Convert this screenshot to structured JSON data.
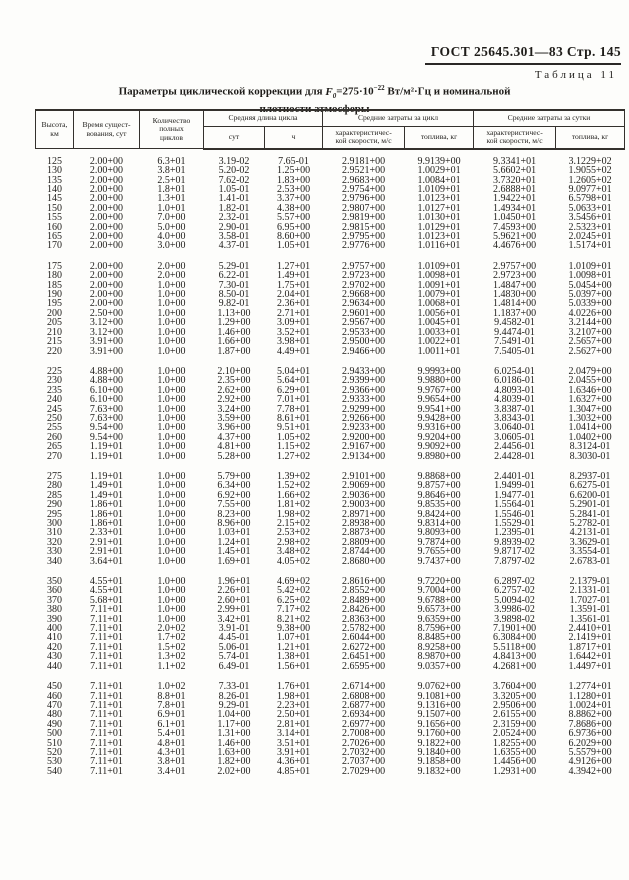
{
  "page_header": {
    "standard": "ГОСТ 25645.301—83",
    "page": "Стр. 145"
  },
  "table_label": "Таблица 11",
  "title": {
    "prefix": "Параметры циклической коррекции для",
    "f_var": "F",
    "f_sub": "0",
    "eq": "=275·10",
    "exp": "−22",
    "units": "Вт/м²·Гц",
    "suffix": "и номинальной",
    "line2": "плотности атмосферы"
  },
  "table": {
    "headers": {
      "height": "Высота, км",
      "lifetime": "Время сущест-\nвования, сут",
      "cycles": "Количество\nполных\nциклов",
      "cycle_length_group": "Средняя длина цикла",
      "cycle_length_days": "сут",
      "cycle_length_hours": "ч",
      "per_cycle_group": "Средние затраты за цикл",
      "per_cycle_velocity": "характеристичес-\nкой скорости, м/с",
      "per_cycle_fuel": "топлива, кг",
      "per_day_group": "Средние затраты за сутки",
      "per_day_velocity": "характеристичес-\nкой скорости, м/с",
      "per_day_fuel": "топлива, кг"
    },
    "groups": [
      {
        "rows": [
          [
            "125",
            "2.00+00",
            "6.3+01",
            "3.19-02",
            "7.65-01",
            "2.9181+00",
            "9.9139+00",
            "9.3341+01",
            "3.1229+02"
          ],
          [
            "130",
            "2.00+00",
            "3.8+01",
            "5.20-02",
            "1.25+00",
            "2.9521+00",
            "1.0029+01",
            "5.6602+01",
            "1.9055+02"
          ],
          [
            "135",
            "2.00+00",
            "2.5+01",
            "7.62-02",
            "1.83+00",
            "2.9683+00",
            "1.0084+01",
            "3.7320+01",
            "1.2605+02"
          ],
          [
            "140",
            "2.00+00",
            "1.8+01",
            "1.05-01",
            "2.53+00",
            "2.9754+00",
            "1.0109+01",
            "2.6888+01",
            "9.0977+01"
          ],
          [
            "145",
            "2.00+00",
            "1.3+01",
            "1.41-01",
            "3.37+00",
            "2.9796+00",
            "1.0123+01",
            "1.9422+01",
            "6.5798+01"
          ],
          [
            "150",
            "2.00+00",
            "1.0+01",
            "1.82-01",
            "4.38+00",
            "2.9807+00",
            "1.0127+01",
            "1.4934+01",
            "5.0633+01"
          ],
          [
            "155",
            "2.00+00",
            "7.0+00",
            "2.32-01",
            "5.57+00",
            "2.9819+00",
            "1.0130+01",
            "1.0450+01",
            "3.5456+01"
          ],
          [
            "160",
            "2.00+00",
            "5.0+00",
            "2.90-01",
            "6.95+00",
            "2.9815+00",
            "1.0129+01",
            "7.4593+00",
            "2.5323+01"
          ],
          [
            "165",
            "2.00+00",
            "4.0+00",
            "3.58-01",
            "8.60+00",
            "2.9795+00",
            "1.0123+01",
            "5.9621+00",
            "2.0245+01"
          ],
          [
            "170",
            "2.00+00",
            "3.0+00",
            "4.37-01",
            "1.05+01",
            "2.9776+00",
            "1.0116+01",
            "4.4676+00",
            "1.5174+01"
          ]
        ]
      },
      {
        "rows": [
          [
            "175",
            "2.00+00",
            "2.0+00",
            "5.29-01",
            "1.27+01",
            "2.9757+00",
            "1.0109+01",
            "2.9757+00",
            "1.0109+01"
          ],
          [
            "180",
            "2.00+00",
            "2.0+00",
            "6.22-01",
            "1.49+01",
            "2.9723+00",
            "1.0098+01",
            "2.9723+00",
            "1.0098+01"
          ],
          [
            "185",
            "2.00+00",
            "1.0+00",
            "7.30-01",
            "1.75+01",
            "2.9702+00",
            "1.0091+01",
            "1.4847+00",
            "5.0454+00"
          ],
          [
            "190",
            "2.00+00",
            "1.0+00",
            "8.50-01",
            "2.04+01",
            "2.9668+00",
            "1.0079+01",
            "1.4830+00",
            "5.0397+00"
          ],
          [
            "195",
            "2.00+00",
            "1.0+00",
            "9.82-01",
            "2.36+01",
            "2.9634+00",
            "1.0068+01",
            "1.4814+00",
            "5.0339+00"
          ],
          [
            "200",
            "2.50+00",
            "1.0+00",
            "1.13+00",
            "2.71+01",
            "2.9601+00",
            "1.0056+01",
            "1.1837+00",
            "4.0226+00"
          ],
          [
            "205",
            "3.12+00",
            "1.0+00",
            "1.29+00",
            "3.09+01",
            "2.9567+00",
            "1.0045+01",
            "9.4582-01",
            "3.2144+00"
          ],
          [
            "210",
            "3.12+00",
            "1.0+00",
            "1.46+00",
            "3.52+01",
            "2.9533+00",
            "1.0033+01",
            "9.4474-01",
            "3.2107+00"
          ],
          [
            "215",
            "3.91+00",
            "1.0+00",
            "1.66+00",
            "3.98+01",
            "2.9500+00",
            "1.0022+01",
            "7.5491-01",
            "2.5657+00"
          ],
          [
            "220",
            "3.91+00",
            "1.0+00",
            "1.87+00",
            "4.49+01",
            "2.9466+00",
            "1.0011+01",
            "7.5405-01",
            "2.5627+00"
          ]
        ]
      },
      {
        "rows": [
          [
            "225",
            "4.88+00",
            "1.0+00",
            "2.10+00",
            "5.04+01",
            "2.9433+00",
            "9.9993+00",
            "6.0254-01",
            "2.0479+00"
          ],
          [
            "230",
            "4.88+00",
            "1.0+00",
            "2.35+00",
            "5.64+01",
            "2.9399+00",
            "9.9880+00",
            "6.0186-01",
            "2.0455+00"
          ],
          [
            "235",
            "6.10+00",
            "1.0+00",
            "2.62+00",
            "6.29+01",
            "2.9366+00",
            "9.9767+00",
            "4.8093-01",
            "1.6346+00"
          ],
          [
            "240",
            "6.10+00",
            "1.0+00",
            "2.92+00",
            "7.01+01",
            "2.9333+00",
            "9.9654+00",
            "4.8039-01",
            "1.6327+00"
          ],
          [
            "245",
            "7.63+00",
            "1.0+00",
            "3.24+00",
            "7.78+01",
            "2.9299+00",
            "9.9541+00",
            "3.8387-01",
            "1.3047+00"
          ],
          [
            "250",
            "7.63+00",
            "1.0+00",
            "3.59+00",
            "8.61+01",
            "2.9266+00",
            "9.9428+00",
            "3.8343-01",
            "1.3032+00"
          ],
          [
            "255",
            "9.54+00",
            "1.0+00",
            "3.96+00",
            "9.51+01",
            "2.9233+00",
            "9.9316+00",
            "3.0640-01",
            "1.0414+00"
          ],
          [
            "260",
            "9.54+00",
            "1.0+00",
            "4.37+00",
            "1.05+02",
            "2.9200+00",
            "9.9204+00",
            "3.0605-01",
            "1.0402+00"
          ],
          [
            "265",
            "1.19+01",
            "1.0+00",
            "4.81+00",
            "1.15+02",
            "2.9167+00",
            "9.9092+00",
            "2.4456-01",
            "8.3124-01"
          ],
          [
            "270",
            "1.19+01",
            "1.0+00",
            "5.28+00",
            "1.27+02",
            "2.9134+00",
            "9.8980+00",
            "2.4428-01",
            "8.3030-01"
          ]
        ]
      },
      {
        "rows": [
          [
            "275",
            "1.19+01",
            "1.0+00",
            "5.79+00",
            "1.39+02",
            "2.9101+00",
            "9.8868+00",
            "2.4401-01",
            "8.2937-01"
          ],
          [
            "280",
            "1.49+01",
            "1.0+00",
            "6.34+00",
            "1.52+02",
            "2.9069+00",
            "9.8757+00",
            "1.9499-01",
            "6.6275-01"
          ],
          [
            "285",
            "1.49+01",
            "1.0+00",
            "6.92+00",
            "1.66+02",
            "2.9036+00",
            "9.8646+00",
            "1.9477-01",
            "6.6200-01"
          ],
          [
            "290",
            "1.86+01",
            "1.0+00",
            "7.55+00",
            "1.81+02",
            "2.9003+00",
            "9.8535+00",
            "1.5564-01",
            "5.2901-01"
          ],
          [
            "295",
            "1.86+01",
            "1.0+00",
            "8.23+00",
            "1.98+02",
            "2.8971+00",
            "9.8424+00",
            "1.5546-01",
            "5.2841-01"
          ],
          [
            "300",
            "1.86+01",
            "1.0+00",
            "8.96+00",
            "2.15+02",
            "2.8938+00",
            "9.8314+00",
            "1.5529-01",
            "5.2782-01"
          ],
          [
            "310",
            "2.33+01",
            "1.0+00",
            "1.03+01",
            "2.53+02",
            "2.8873+00",
            "9.8093+00",
            "1.2395-01",
            "4.2131-01"
          ],
          [
            "320",
            "2.91+01",
            "1.0+00",
            "1.24+01",
            "2.98+02",
            "2.8809+00",
            "9.7874+00",
            "9.8939-02",
            "3.3629-01"
          ],
          [
            "330",
            "2.91+01",
            "1.0+00",
            "1.45+01",
            "3.48+02",
            "2.8744+00",
            "9.7655+00",
            "9.8717-02",
            "3.3554-01"
          ],
          [
            "340",
            "3.64+01",
            "1.0+00",
            "1.69+01",
            "4.05+02",
            "2.8680+00",
            "9.7437+00",
            "7.8797-02",
            "2.6783-01"
          ]
        ]
      },
      {
        "rows": [
          [
            "350",
            "4.55+01",
            "1.0+00",
            "1.96+01",
            "4.69+02",
            "2.8616+00",
            "9.7220+00",
            "6.2897-02",
            "2.1379-01"
          ],
          [
            "360",
            "4.55+01",
            "1.0+00",
            "2.26+01",
            "5.42+02",
            "2.8552+00",
            "9.7004+00",
            "6.2757-02",
            "2.1331-01"
          ],
          [
            "370",
            "5.68+01",
            "1.0+00",
            "2.60+01",
            "6.25+02",
            "2.8489+00",
            "9.6788+00",
            "5.0094-02",
            "1.7027-01"
          ],
          [
            "380",
            "7.11+01",
            "1.0+00",
            "2.99+01",
            "7.17+02",
            "2.8426+00",
            "9.6573+00",
            "3.9986-02",
            "1.3591-01"
          ],
          [
            "390",
            "7.11+01",
            "1.0+00",
            "3.42+01",
            "8.21+02",
            "2.8363+00",
            "9.6359+00",
            "3.9898-02",
            "1.3561-01"
          ],
          [
            "400",
            "7.11+01",
            "2.0+02",
            "3.91-01",
            "9.38+00",
            "2.5782+00",
            "8.7596+00",
            "7.1901+00",
            "2.4410+01"
          ],
          [
            "410",
            "7.11+01",
            "1.7+02",
            "4.45-01",
            "1.07+01",
            "2.6044+00",
            "8.8485+00",
            "6.3084+00",
            "2.1419+01"
          ],
          [
            "420",
            "7.11+01",
            "1.5+02",
            "5.06-01",
            "1.21+01",
            "2.6272+00",
            "8.9258+00",
            "5.5118+00",
            "1.8717+01"
          ],
          [
            "430",
            "7.11+01",
            "1.3+02",
            "5.74-01",
            "1.38+01",
            "2.6451+00",
            "8.9870+00",
            "4.8413+00",
            "1.6442+01"
          ],
          [
            "440",
            "7.11+01",
            "1.1+02",
            "6.49-01",
            "1.56+01",
            "2.6595+00",
            "9.0357+00",
            "4.2681+00",
            "1.4497+01"
          ]
        ]
      },
      {
        "rows": [
          [
            "450",
            "7.11+01",
            "1.0+02",
            "7.33-01",
            "1.76+01",
            "2.6714+00",
            "9.0762+00",
            "3.7604+00",
            "1.2774+01"
          ],
          [
            "460",
            "7.11+01",
            "8.8+01",
            "8.26-01",
            "1.98+01",
            "2.6808+00",
            "9.1081+00",
            "3.3205+00",
            "1.1280+01"
          ],
          [
            "470",
            "7.11+01",
            "7.8+01",
            "9.29-01",
            "2.23+01",
            "2.6877+00",
            "9.1316+00",
            "2.9506+00",
            "1.0024+01"
          ],
          [
            "480",
            "7.11+01",
            "6.9+01",
            "1.04+00",
            "2.50+01",
            "2.6934+00",
            "9.1507+00",
            "2.6155+00",
            "8.8862+00"
          ],
          [
            "490",
            "7.11+01",
            "6.1+01",
            "1.17+00",
            "2.81+01",
            "2.6977+00",
            "9.1656+00",
            "2.3159+00",
            "7.8686+00"
          ],
          [
            "500",
            "7.11+01",
            "5.4+01",
            "1.31+00",
            "3.14+01",
            "2.7008+00",
            "9.1760+00",
            "2.0524+00",
            "6.9736+00"
          ],
          [
            "510",
            "7.11+01",
            "4.8+01",
            "1.46+00",
            "3.51+01",
            "2.7026+00",
            "9.1822+00",
            "1.8255+00",
            "6.2029+00"
          ],
          [
            "520",
            "7.11+01",
            "4.3+01",
            "1.63+00",
            "3.91+01",
            "2.7032+00",
            "9.1840+00",
            "1.6355+00",
            "5.5579+00"
          ],
          [
            "530",
            "7.11+01",
            "3.8+01",
            "1.82+00",
            "4.36+01",
            "2.7037+00",
            "9.1858+00",
            "1.4456+00",
            "4.9126+00"
          ],
          [
            "540",
            "7.11+01",
            "3.4+01",
            "2.02+00",
            "4.85+01",
            "2.7029+00",
            "9.1832+00",
            "1.2931+00",
            "4.3942+00"
          ]
        ]
      }
    ]
  }
}
